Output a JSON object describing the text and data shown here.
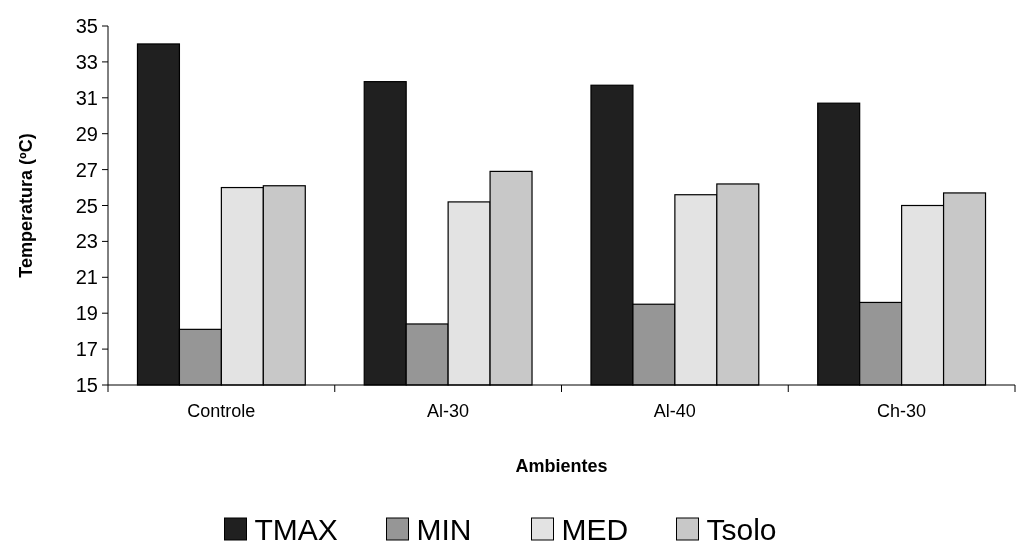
{
  "chart_data": {
    "type": "bar",
    "xlabel": "Ambientes",
    "ylabel": "Temperatura (ºC)",
    "categories": [
      "Controle",
      "Al-30",
      "Al-40",
      "Ch-30"
    ],
    "series": [
      {
        "name": "TMAX",
        "color": "#202020",
        "values": [
          34.0,
          31.9,
          31.7,
          30.7
        ]
      },
      {
        "name": "MIN",
        "color": "#969696",
        "values": [
          18.1,
          18.4,
          19.5,
          19.6
        ]
      },
      {
        "name": "MED",
        "color": "#e3e3e3",
        "values": [
          26.0,
          25.2,
          25.6,
          25.0
        ]
      },
      {
        "name": "Tsolo",
        "color": "#c8c8c8",
        "values": [
          26.1,
          26.9,
          26.2,
          25.7
        ]
      }
    ],
    "ylim": [
      15,
      35
    ],
    "yticks": [
      15,
      17,
      19,
      21,
      23,
      25,
      27,
      29,
      31,
      33,
      35
    ],
    "grid": false,
    "legend": "bottom"
  }
}
